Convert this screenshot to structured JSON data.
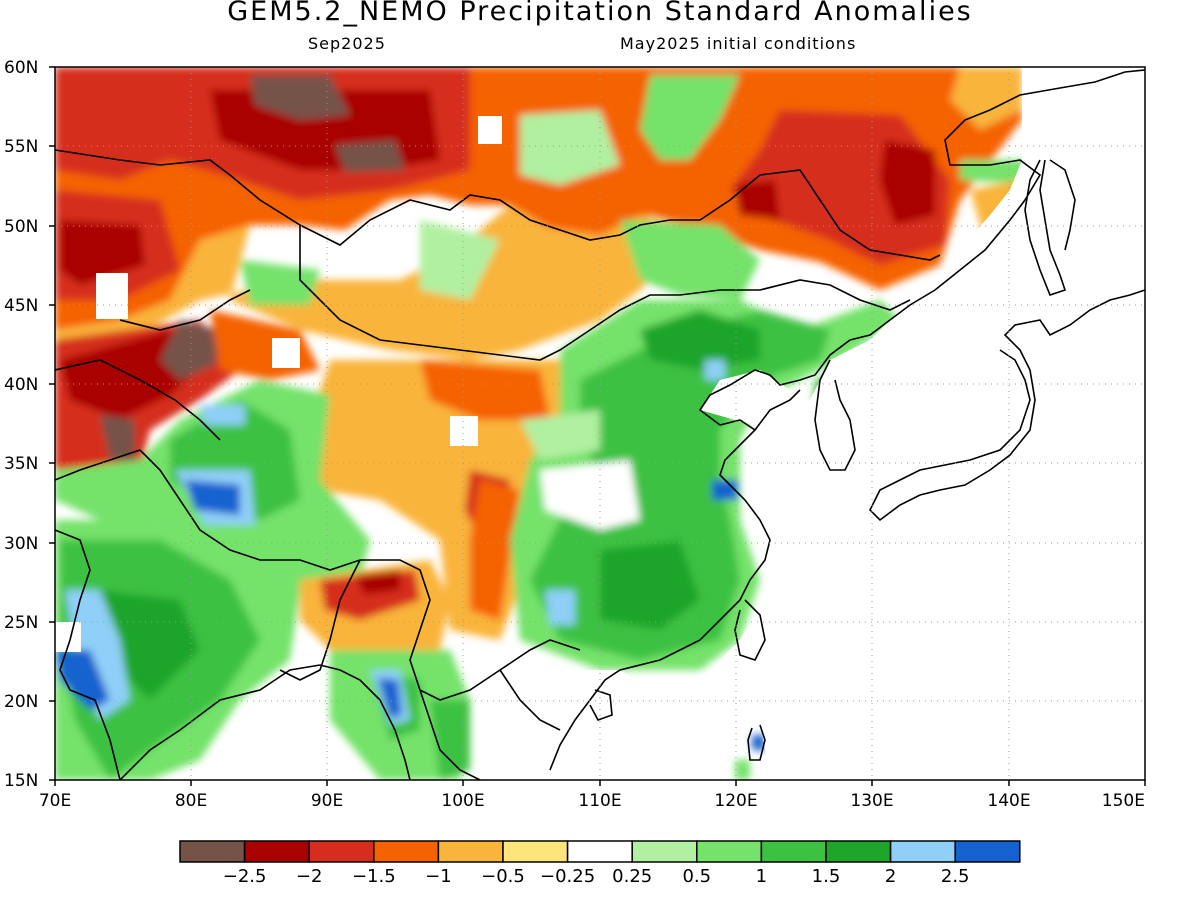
{
  "title": "GEM5.2_NEMO Precipitation Standard Anomalies",
  "subtitle_left": "Sep2025",
  "subtitle_right": "May2025 initial conditions",
  "map": {
    "lon_min": 70,
    "lon_max": 150,
    "lat_min": 15,
    "lat_max": 60,
    "lat_ticks": [
      "15N",
      "20N",
      "25N",
      "30N",
      "35N",
      "40N",
      "45N",
      "50N",
      "55N",
      "60N"
    ],
    "lon_ticks": [
      "70E",
      "80E",
      "90E",
      "100E",
      "110E",
      "120E",
      "130E",
      "140E",
      "150E"
    ],
    "gridlines": "dotted"
  },
  "colorbar": {
    "colors": [
      "#765348",
      "#a90000",
      "#d62d1e",
      "#f56200",
      "#f9b43a",
      "#fde57c",
      "#ffffff",
      "#b1f0a0",
      "#74e26b",
      "#3dc142",
      "#1ea52a",
      "#8fcff8",
      "#1462cf"
    ],
    "labels": [
      "−2.5",
      "−2",
      "−1.5",
      "−1",
      "−0.5",
      "−0.25",
      "0.25",
      "0.5",
      "1",
      "1.5",
      "2",
      "2.5"
    ]
  }
}
